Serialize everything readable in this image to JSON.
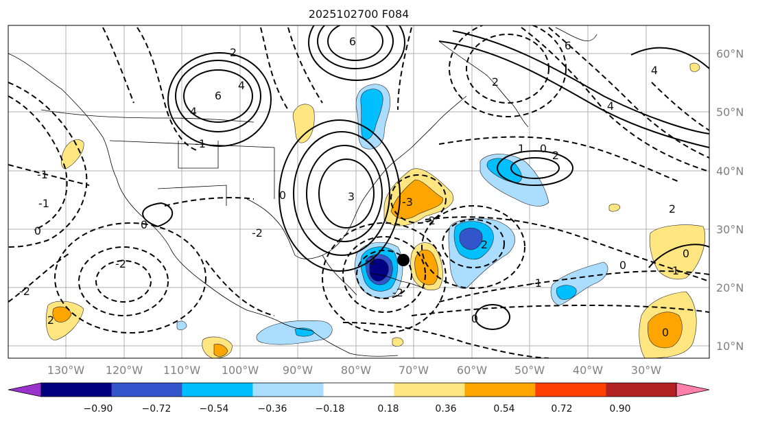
{
  "title": "2025102700 F084",
  "lon_labels": [
    "130°W",
    "120°W",
    "110°W",
    "100°W",
    "90°W",
    "80°W",
    "70°W",
    "60°W",
    "50°W",
    "40°W",
    "30°W"
  ],
  "lat_labels": [
    "60°N",
    "50°N",
    "40°N",
    "30°N",
    "20°N",
    "10°N"
  ],
  "colorbar": {
    "ticks": [
      "−0.90",
      "−0.72",
      "−0.54",
      "−0.36",
      "−0.18",
      "0.18",
      "0.36",
      "0.54",
      "0.72",
      "0.90"
    ],
    "colors": [
      "#9933cc",
      "#000080",
      "#3355cc",
      "#00bfff",
      "#aaddff",
      "#ffffff",
      "#ffe680",
      "#ffa500",
      "#ff4000",
      "#b22222",
      "#ff80a8"
    ]
  },
  "contour_labels": [
    "6",
    "4",
    "6",
    "4",
    "2",
    "6",
    "4",
    "2",
    "0",
    "1",
    "4",
    "2",
    "0",
    "2",
    "-2",
    "0",
    "-1",
    "0",
    "-2",
    "-2",
    "2",
    "-1",
    "-1",
    "0",
    "0",
    "1",
    "0",
    "0",
    "-3",
    "-2",
    "-2",
    "-1",
    "-2",
    "3",
    "2"
  ],
  "storm_marker": "tropical-cyclone-position"
}
